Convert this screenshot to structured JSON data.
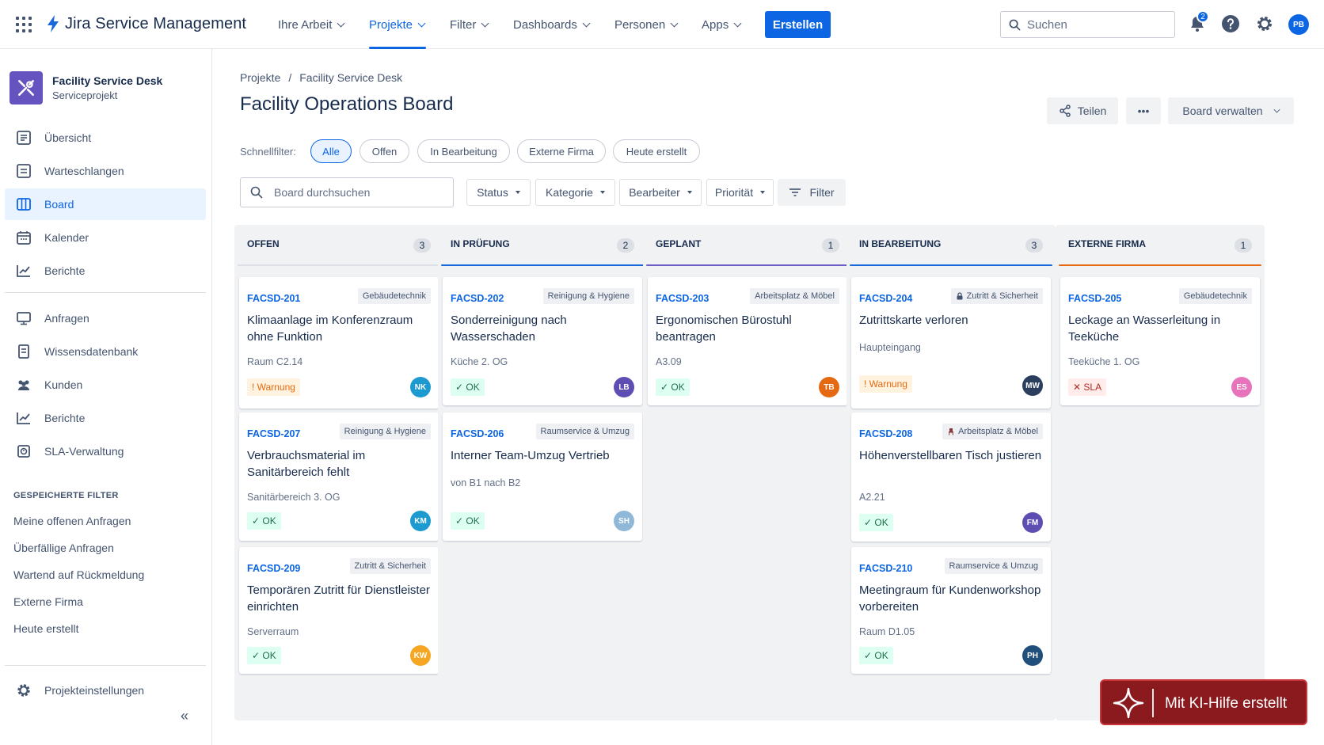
{
  "app": {
    "name": "Jira Service Management"
  },
  "topnav": {
    "items": [
      "Ihre Arbeit",
      "Projekte",
      "Filter",
      "Dashboards",
      "Personen",
      "Apps"
    ],
    "create_label": "Erstellen",
    "search_placeholder": "Suchen",
    "notifications_count": "2",
    "user_initials": "PB"
  },
  "sidebar": {
    "project_name": "Facility Service Desk",
    "project_type": "Serviceprojekt",
    "items": [
      "Übersicht",
      "Warteschlangen",
      "Board",
      "Kalender",
      "Berichte"
    ],
    "items2": [
      "Anfragen",
      "Wissensdatenbank",
      "Kunden",
      "Berichte",
      "SLA-Verwaltung"
    ],
    "saved_filters_title": "GESPEICHERTE FILTER",
    "saved_filters": [
      "Meine offenen Anfragen",
      "Überfällige Anfragen",
      "Wartend auf Rückmeldung",
      "Externe Firma",
      "Heute erstellt"
    ],
    "settings_label": "Projekteinstellungen",
    "collapse_label": "«"
  },
  "main": {
    "breadcrumb": [
      "Projekte",
      "/",
      "Facility Service Desk"
    ],
    "title": "Facility Operations Board",
    "share_label": "Teilen",
    "more_label": "•••",
    "manage_label": "Board verwalten",
    "quickfilter_label": "Schnellfilter:",
    "quickfilters": [
      "Alle",
      "Offen",
      "In Bearbeitung",
      "Externe Firma",
      "Heute erstellt"
    ],
    "board_search_placeholder": "Board durchsuchen",
    "filters": [
      "Status",
      "Kategorie",
      "Bearbeiter",
      "Priorität"
    ],
    "filter_label": "Filter"
  },
  "columns": [
    {
      "title": "OFFEN",
      "count": "3",
      "color": "#dcdfe4",
      "cards": [
        {
          "key": "FACSD-201",
          "tag": "Gebäudetechnik",
          "title": "Klimaanlage im Konferenzraum ohne Funktion",
          "location": "Raum C2.14",
          "status": "! Warnung",
          "status_type": "warn",
          "assignee": "NK",
          "assignee_color": "#1d9bd1"
        },
        {
          "key": "FACSD-207",
          "tag": "Reinigung & Hygiene",
          "title": "Verbrauchsmaterial im Sanitärbereich fehlt",
          "location": "Sanitärbereich 3. OG",
          "status": "✓ OK",
          "status_type": "ok",
          "assignee": "KM",
          "assignee_color": "#1d9bd1"
        },
        {
          "key": "FACSD-209",
          "tag": "Zutritt & Sicherheit",
          "title": "Temporären Zutritt für Dienstleister einrichten",
          "location": "Serverraum",
          "status": "✓ OK",
          "status_type": "ok",
          "assignee": "KW",
          "assignee_color": "#f5a623"
        }
      ]
    },
    {
      "title": "IN PRÜFUNG",
      "count": "2",
      "color": "#1868db",
      "cards": [
        {
          "key": "FACSD-202",
          "tag": "Reinigung & Hygiene",
          "title": "Sonderreinigung nach Wasserschaden",
          "location": "Küche 2. OG",
          "status": "✓ OK",
          "status_type": "ok",
          "assignee": "LB",
          "assignee_color": "#5e4db2"
        },
        {
          "key": "FACSD-206",
          "tag": "Raumservice & Umzug",
          "title": "Interner Team-Umzug Vertrieb",
          "location": "von B1 nach B2",
          "status": "✓ OK",
          "status_type": "ok",
          "assignee": "SH",
          "assignee_color": "#8fb8d8"
        }
      ]
    },
    {
      "title": "GEPLANT",
      "count": "1",
      "color": "#6e5dc6",
      "cards": [
        {
          "key": "FACSD-203",
          "tag": "Arbeitsplatz & Möbel",
          "title": "Ergonomischen Bürostuhl beantragen",
          "location": "A3.09",
          "status": "✓ OK",
          "status_type": "ok",
          "assignee": "TB",
          "assignee_color": "#e56910"
        }
      ]
    },
    {
      "title": "IN BEARBEITUNG",
      "count": "3",
      "color": "#1868db",
      "cards": [
        {
          "key": "FACSD-204",
          "tag": "Zutritt & Sicherheit",
          "tag_icon": "lock-icon",
          "title": "Zutrittskarte verloren",
          "location": "Haupteingang",
          "status": "! Warnung",
          "status_type": "warn",
          "assignee": "MW",
          "assignee_color": "#2c3e5d"
        },
        {
          "key": "FACSD-208",
          "tag": "Arbeitsplatz & Möbel",
          "tag_icon": "chair-icon",
          "title": "Höhenverstellbaren Tisch justieren",
          "location": "A2.21",
          "status": "✓ OK",
          "status_type": "ok",
          "assignee": "FM",
          "assignee_color": "#5e4db2"
        },
        {
          "key": "FACSD-210",
          "tag": "Raumservice & Umzug",
          "title": "Meetingraum für Kundenworkshop vorbereiten",
          "location": "Raum D1.05",
          "status": "✓ OK",
          "status_type": "ok",
          "assignee": "PH",
          "assignee_color": "#1f4f7a"
        }
      ]
    },
    {
      "title": "EXTERNE FIRMA",
      "count": "1",
      "color": "#e56910",
      "cards": [
        {
          "key": "FACSD-205",
          "tag": "Gebäudetechnik",
          "title": "Leckage an Wasserleitung in Teeküche",
          "location": "Teeküche 1. OG",
          "status": "✕ SLA",
          "status_type": "sla",
          "assignee": "ES",
          "assignee_color": "#e774bb"
        }
      ]
    }
  ],
  "ai_badge": {
    "label": "Mit KI-Hilfe erstellt"
  }
}
